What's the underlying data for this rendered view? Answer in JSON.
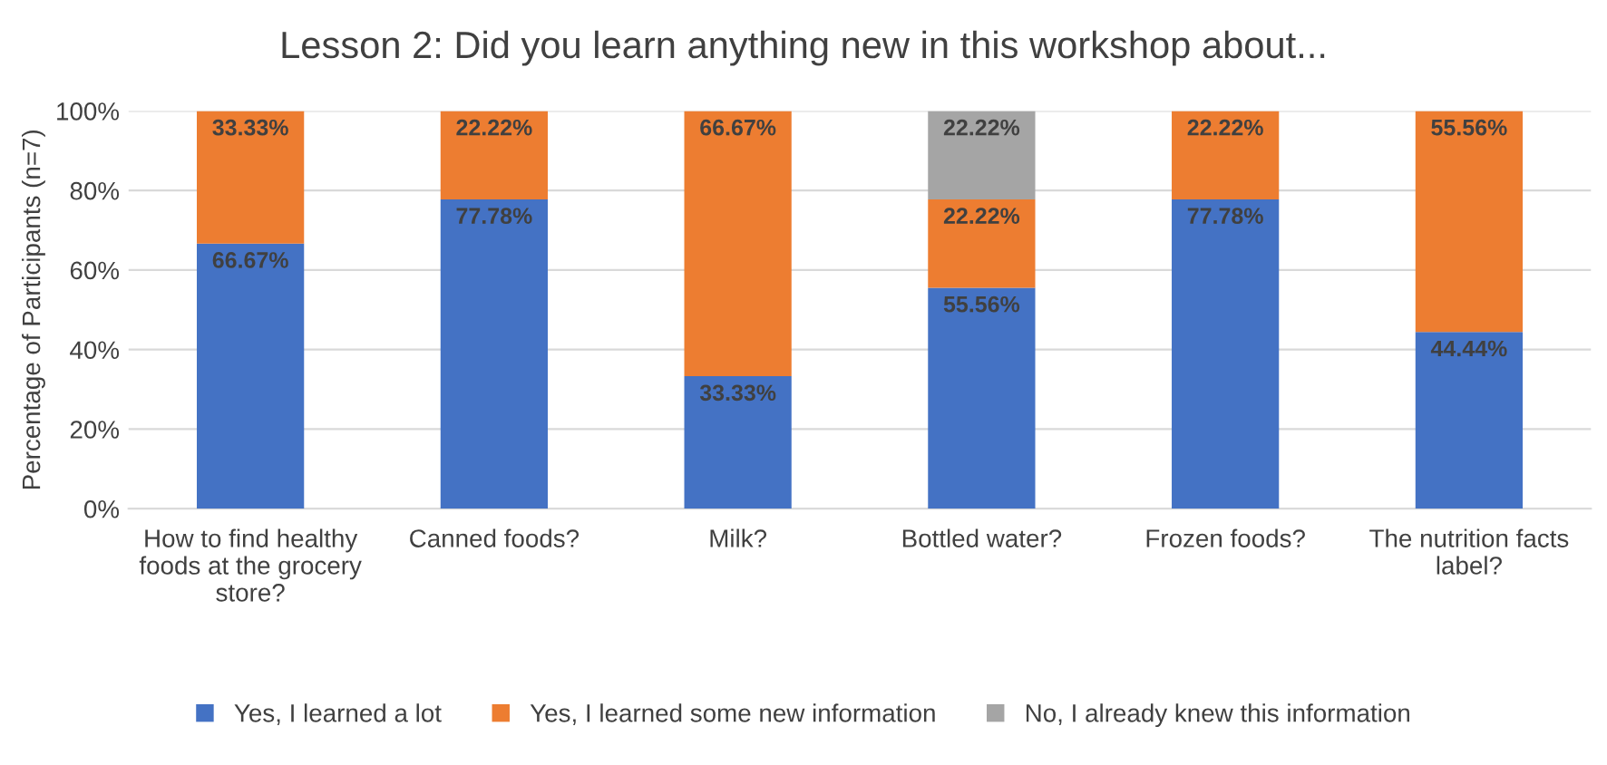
{
  "chart_data": {
    "type": "bar",
    "stacked": true,
    "title": "Lesson 2: Did you learn anything new in this workshop about...",
    "ylabel": "Percentage of Participants (n=7)",
    "categories": [
      "How to find healthy foods at the grocery store?",
      "Canned foods?",
      "Milk?",
      "Bottled water?",
      "Frozen foods?",
      "The nutrition facts label?"
    ],
    "series": [
      {
        "name": "Yes, I learned a lot",
        "color": "#4472c4",
        "values": [
          66.67,
          77.78,
          33.33,
          55.56,
          77.78,
          44.44
        ],
        "value_labels": [
          "66.67%",
          "77.78%",
          "33.33%",
          "55.56%",
          "77.78%",
          "44.44%"
        ]
      },
      {
        "name": "Yes, I learned some new information",
        "color": "#ed7d31",
        "values": [
          33.33,
          22.22,
          66.67,
          22.22,
          22.22,
          55.56
        ],
        "value_labels": [
          "33.33%",
          "22.22%",
          "66.67%",
          "22.22%",
          "22.22%",
          "55.56%"
        ]
      },
      {
        "name": "No, I already knew this information",
        "color": "#a5a5a5",
        "values": [
          null,
          null,
          null,
          22.22,
          null,
          null
        ],
        "value_labels": [
          null,
          null,
          null,
          "22.22%",
          null,
          null
        ]
      }
    ],
    "ylim": [
      0,
      100
    ],
    "yticks": [
      {
        "value": 0,
        "label": "0%"
      },
      {
        "value": 20,
        "label": "20%"
      },
      {
        "value": 40,
        "label": "40%"
      },
      {
        "value": 60,
        "label": "60%"
      },
      {
        "value": 80,
        "label": "80%"
      },
      {
        "value": 100,
        "label": "100%"
      }
    ],
    "grid": "y",
    "legend": "bottom"
  }
}
